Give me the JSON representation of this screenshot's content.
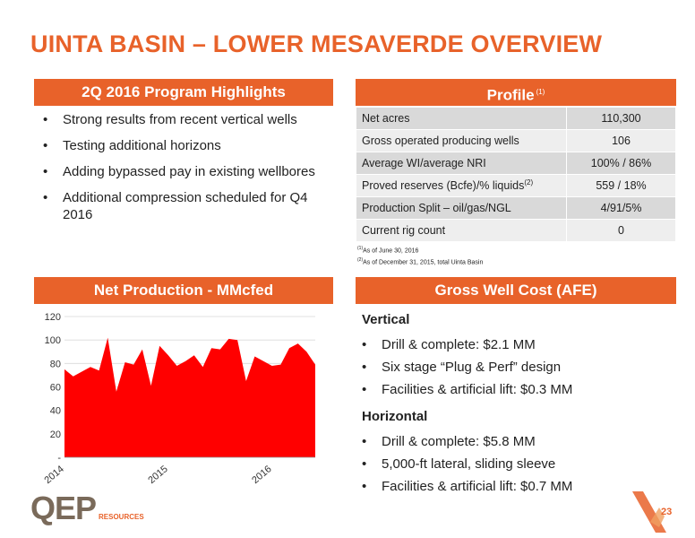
{
  "title": "UINTA BASIN – LOWER MESAVERDE OVERVIEW",
  "highlights": {
    "header": "2Q 2016 Program Highlights",
    "bullets": [
      "Strong results from recent vertical wells",
      "Testing additional horizons",
      "Adding bypassed pay in existing wellbores",
      "Additional compression scheduled for Q4 2016"
    ]
  },
  "profile": {
    "header": "Profile",
    "header_note": "(1)",
    "rows": [
      {
        "label": "Net acres",
        "value": "110,300"
      },
      {
        "label": "Gross operated producing wells",
        "value": "106"
      },
      {
        "label": "Average WI/average NRI",
        "value": "100% / 86%"
      },
      {
        "label": "Proved reserves (Bcfe)/% liquids",
        "note": "(2)",
        "value": "559 / 18%"
      },
      {
        "label": "Production Split – oil/gas/NGL",
        "value": "4/91/5%"
      },
      {
        "label": "Current rig count",
        "value": "0"
      }
    ],
    "footnotes": [
      {
        "mark": "(1)",
        "text": "As of June 30, 2016"
      },
      {
        "mark": "(2)",
        "text": "As of December 31, 2015, total Uinta Basin"
      }
    ]
  },
  "production": {
    "header": "Net Production - MMcfed"
  },
  "well_cost": {
    "header": "Gross Well Cost (AFE)",
    "vertical_label": "Vertical",
    "vertical_bullets": [
      "Drill & complete: $2.1 MM",
      "Six stage “Plug & Perf” design",
      "Facilities & artificial lift:  $0.3 MM"
    ],
    "horizontal_label": "Horizontal",
    "horizontal_bullets": [
      "Drill & complete:  $5.8 MM",
      "5,000-ft lateral, sliding sleeve",
      "Facilities & artificial lift: $0.7 MM"
    ]
  },
  "chart_data": {
    "type": "area",
    "title": "",
    "xlabel": "",
    "ylabel": "",
    "ylim": [
      0,
      120
    ],
    "yticks": [
      "-",
      "20",
      "40",
      "60",
      "80",
      "100",
      "120"
    ],
    "xticks": [
      "2014",
      "2015",
      "2016"
    ],
    "x_start": "2014-01",
    "color": "#ff0000",
    "series": [
      {
        "x": [
          "2014-01",
          "2014-02",
          "2014-03",
          "2014-04",
          "2014-05",
          "2014-06",
          "2014-07",
          "2014-08",
          "2014-09",
          "2014-10",
          "2014-11",
          "2014-12",
          "2015-01",
          "2015-02",
          "2015-03",
          "2015-04",
          "2015-05",
          "2015-06",
          "2015-07",
          "2015-08",
          "2015-09",
          "2015-10",
          "2015-11",
          "2015-12",
          "2016-01",
          "2016-02",
          "2016-03",
          "2016-04",
          "2016-05",
          "2016-06"
        ],
        "values": [
          75,
          69,
          73,
          77,
          74,
          102,
          56,
          81,
          79,
          92,
          61,
          95,
          87,
          78,
          82,
          87,
          77,
          93,
          92,
          101,
          100,
          65,
          86,
          82,
          78,
          79,
          93,
          97,
          90,
          79
        ]
      }
    ]
  },
  "footer": {
    "logo_text": "QEP",
    "logo_sub": "RESOURCES",
    "page_number": "23"
  }
}
